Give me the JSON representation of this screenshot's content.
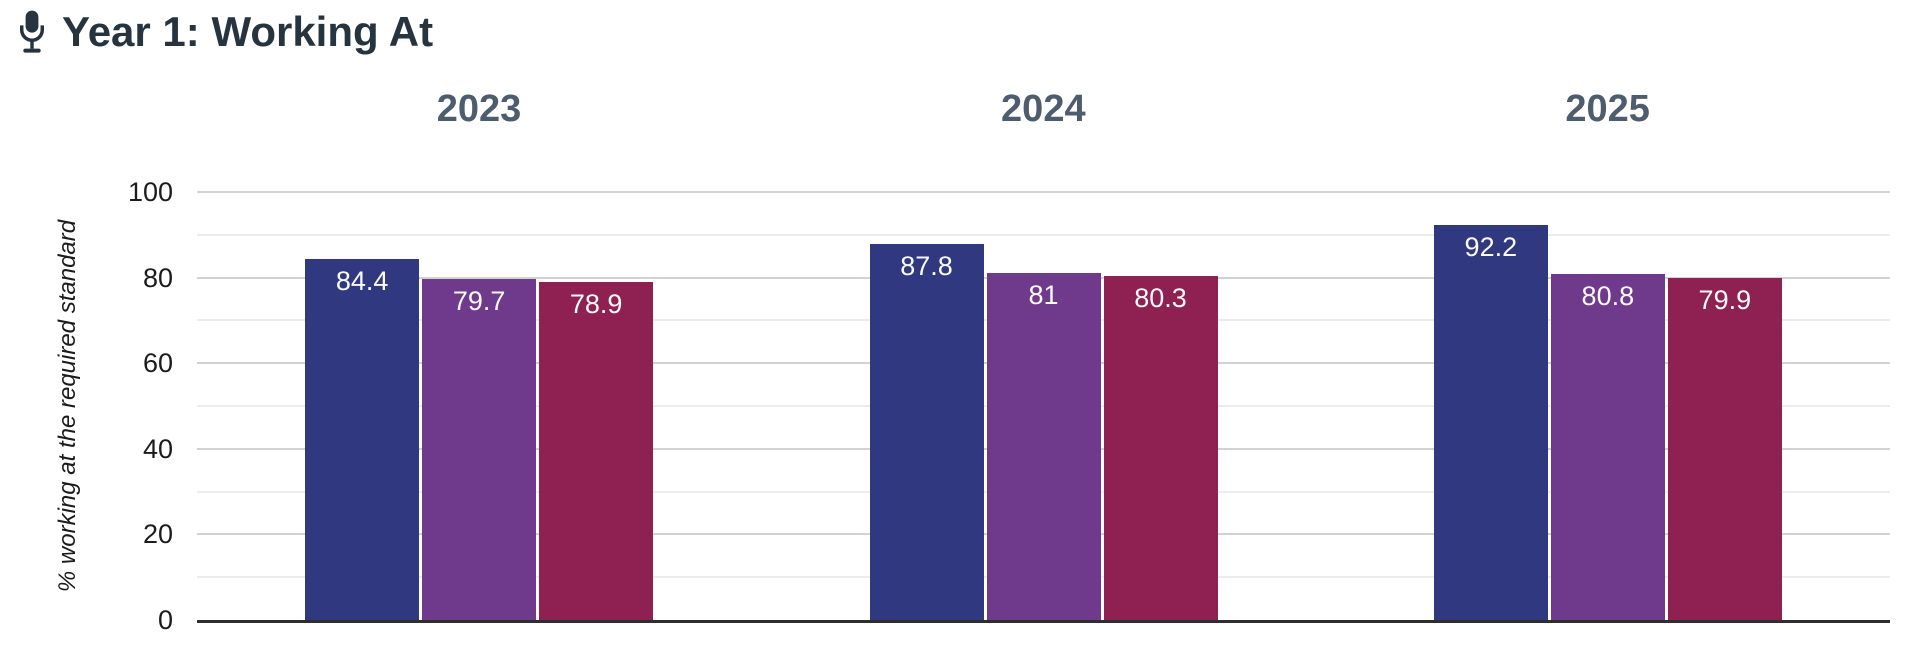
{
  "title": {
    "text": "Year 1: Working At",
    "icon": "microphone-icon"
  },
  "colors": {
    "title_text": "#263440",
    "facet_header_text": "#4e5d6d",
    "axis_text": "#1b1b1b",
    "bar_navy": "#30397F",
    "bar_purple": "#6F3A8C",
    "bar_crimson": "#8E2152",
    "gridline_major": "#d2d2d2",
    "gridline_minor": "#ececec",
    "baseline": "#2e2e2e",
    "bar_value_label_text": "#fafafa",
    "background": "#ffffff"
  },
  "chart_data": {
    "type": "bar",
    "title": "Year 1: Working At",
    "categories": [
      "2023",
      "2024",
      "2025"
    ],
    "series": [
      {
        "name": "series-navy",
        "color": "#30397F",
        "values": [
          84.4,
          87.8,
          92.2
        ]
      },
      {
        "name": "series-purple",
        "color": "#6F3A8C",
        "values": [
          79.7,
          81,
          80.8
        ]
      },
      {
        "name": "series-crimson",
        "color": "#8E2152",
        "values": [
          78.9,
          80.3,
          79.9
        ]
      }
    ],
    "display_values": [
      [
        "84.4",
        "79.7",
        "78.9"
      ],
      [
        "87.8",
        "81",
        "80.3"
      ],
      [
        "92.2",
        "80.8",
        "79.9"
      ]
    ],
    "xlabel": "",
    "ylabel": "% working at the required standard",
    "ylim": [
      0,
      100
    ],
    "yticks": [
      0,
      20,
      40,
      60,
      80,
      100
    ],
    "minor_grid_step": 10,
    "grid": "horizontal",
    "legend_position": "none"
  }
}
